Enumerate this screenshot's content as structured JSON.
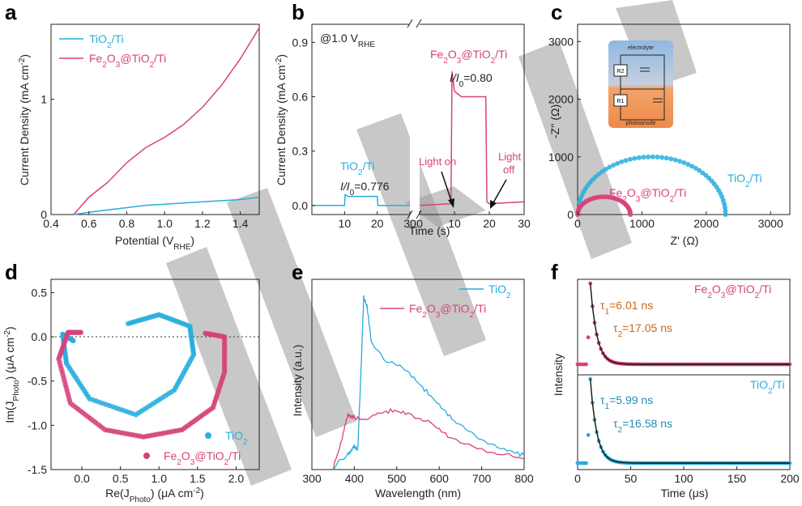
{
  "colors": {
    "tio2": "#27aedd",
    "fe2o3": "#d7427b",
    "fit": "#111111",
    "tau_fe": "#c56a1b",
    "tau_ti": "#1f8fb8"
  },
  "chart_data": [
    {
      "id": "a",
      "panel_label": "a",
      "type": "line",
      "xlabel": "Potential (V",
      "xlabel_sub": "RHE",
      "xlabel_end": ")",
      "ylabel": "Current Density  (mA cm",
      "ylabel_sup": "-2",
      "ylabel_end": ")",
      "xlim": [
        0.4,
        1.5
      ],
      "ylim": [
        0,
        1.65
      ],
      "xticks": [
        0.4,
        0.6,
        0.8,
        1.0,
        1.2,
        1.4
      ],
      "yticks": [
        0,
        1
      ],
      "legend": [
        {
          "key": "tio2",
          "name": "TiO",
          "sub1": "2",
          "rest": "/Ti"
        },
        {
          "key": "fe2o3",
          "name": "Fe",
          "sub1": "2",
          "mid": "O",
          "sub2": "3",
          "rest": "@TiO",
          "sub3": "2",
          "tail": "/Ti"
        }
      ],
      "series": [
        {
          "key": "tio2",
          "x": [
            0.52,
            0.6,
            0.7,
            0.8,
            0.9,
            1.0,
            1.1,
            1.2,
            1.3,
            1.4,
            1.5
          ],
          "y": [
            0.0,
            0.02,
            0.04,
            0.06,
            0.08,
            0.09,
            0.1,
            0.11,
            0.12,
            0.13,
            0.15
          ]
        },
        {
          "key": "fe2o3",
          "x": [
            0.52,
            0.6,
            0.7,
            0.8,
            0.9,
            1.0,
            1.1,
            1.2,
            1.3,
            1.4,
            1.5
          ],
          "y": [
            0.0,
            0.15,
            0.28,
            0.45,
            0.58,
            0.67,
            0.78,
            0.93,
            1.12,
            1.35,
            1.62
          ]
        }
      ]
    },
    {
      "id": "b",
      "panel_label": "b",
      "type": "line",
      "annotation_top": "@1.0 V",
      "annotation_top_sub": "RHE",
      "xlabel": "Time (s)",
      "ylabel": "Current Density  (mA cm",
      "ylabel_sup": "-2",
      "ylabel_end": ")",
      "ylim": [
        -0.05,
        1.0
      ],
      "yticks": [
        0.0,
        0.3,
        0.6,
        0.9
      ],
      "left_xticks": [
        0,
        10,
        20,
        30
      ],
      "right_xticks": [
        0,
        10,
        20,
        30
      ],
      "xlim": [
        0,
        30
      ],
      "label_tio2": "TiO",
      "label_tio2_sub": "2",
      "label_tio2_rest": "/Ti",
      "ratio_tio2": "I/I",
      "ratio_tio2_sub": "0",
      "ratio_tio2_val": "=0.776",
      "label_fe": "Fe",
      "label_fe_sub1": "2",
      "label_fe_mid": "O",
      "label_fe_sub2": "3",
      "label_fe_rest": "@TiO",
      "label_fe_sub3": "2",
      "label_fe_tail": "/Ti",
      "ratio_fe": "I/I",
      "ratio_fe_sub": "0",
      "ratio_fe_val": "=0.80",
      "light_on": "Light on",
      "light_off_1": "Light",
      "light_off_2": "off",
      "series": [
        {
          "key": "tio2",
          "part": "left",
          "t": [
            0,
            10,
            10.2,
            11,
            20,
            20.2,
            30
          ],
          "y": [
            0.0,
            0.0,
            0.06,
            0.05,
            0.05,
            0.0,
            0.0
          ]
        },
        {
          "key": "fe2o3",
          "part": "right",
          "t": [
            0,
            9,
            9.3,
            10,
            12,
            19,
            19.3,
            20,
            30
          ],
          "y": [
            0.0,
            0.01,
            0.74,
            0.63,
            0.6,
            0.6,
            0.02,
            0.01,
            0.02
          ]
        }
      ]
    },
    {
      "id": "c",
      "panel_label": "c",
      "type": "scatter",
      "xlabel": "Z' (Ω)",
      "ylabel": "-Z'' (Ω)",
      "xlim": [
        0,
        3300
      ],
      "ylim": [
        0,
        3300
      ],
      "xticks": [
        0,
        1000,
        2000,
        3000
      ],
      "yticks": [
        0,
        1000,
        2000,
        3000
      ],
      "label_tio2": "TiO",
      "label_tio2_sub": "2",
      "label_tio2_rest": "/Ti",
      "label_fe": "Fe",
      "label_fe_sub1": "2",
      "label_fe_mid": "O",
      "label_fe_sub2": "3",
      "label_fe_rest": "@TiO",
      "label_fe_sub3": "2",
      "label_fe_tail": "/Ti",
      "inset": {
        "top_label": "electrolyte",
        "bottom_label": "photoanode",
        "r2": "R2",
        "r1": "R1"
      },
      "arcs": [
        {
          "key": "tio2",
          "center": 1150,
          "radius": 1150,
          "z_end": 2320,
          "points": 48
        },
        {
          "key": "fe2o3",
          "center": 410,
          "radius": 410,
          "z_end": 820,
          "points": 36
        }
      ]
    },
    {
      "id": "d",
      "panel_label": "d",
      "type": "scatter",
      "xlabel": "Re(J",
      "xlabel_sub": "Photo",
      "xlabel_end": ") (μA cm",
      "xlabel_sup": "-2",
      "xlabel_end2": ")",
      "ylabel": "Im(J",
      "ylabel_sub": "Photo",
      "ylabel_end": ") (μA cm",
      "ylabel_sup": "-2",
      "ylabel_end2": ")",
      "xlim": [
        -0.4,
        2.3
      ],
      "ylim": [
        -1.5,
        0.65
      ],
      "xticks": [
        0.0,
        0.5,
        1.0,
        1.5,
        2.0
      ],
      "yticks": [
        -1.5,
        -1.0,
        -0.5,
        0.0,
        0.5
      ],
      "legend": [
        {
          "key": "tio2",
          "name": "TiO",
          "sub1": "2"
        },
        {
          "key": "fe2o3",
          "name": "Fe",
          "sub1": "2",
          "mid": "O",
          "sub2": "3",
          "rest": "@TiO",
          "sub3": "2",
          "tail": "/Ti"
        }
      ],
      "series": [
        {
          "key": "tio2",
          "x": [
            0.6,
            1.0,
            1.4,
            1.45,
            1.2,
            0.7,
            0.1,
            -0.2,
            -0.25,
            -0.1
          ],
          "y": [
            0.15,
            0.25,
            0.12,
            -0.2,
            -0.6,
            -0.88,
            -0.7,
            -0.3,
            0.03,
            -0.05
          ]
        },
        {
          "key": "fe2o3",
          "x": [
            1.6,
            1.85,
            1.85,
            1.7,
            1.3,
            0.8,
            0.3,
            -0.15,
            -0.3,
            -0.18,
            0.0
          ],
          "y": [
            0.04,
            0.0,
            -0.4,
            -0.8,
            -1.05,
            -1.13,
            -1.05,
            -0.75,
            -0.25,
            0.05,
            0.05
          ]
        }
      ]
    },
    {
      "id": "e",
      "panel_label": "e",
      "type": "line",
      "xlabel": "Wavelength (nm)",
      "ylabel": "Intensity  (a.u.)",
      "xlim": [
        300,
        800
      ],
      "xticks": [
        300,
        400,
        500,
        600,
        700,
        800
      ],
      "legend": [
        {
          "key": "tio2",
          "name": "TiO",
          "sub1": "2"
        },
        {
          "key": "fe2o3",
          "name": "Fe",
          "sub1": "2",
          "mid": "O",
          "sub2": "3",
          "rest": "@TiO",
          "sub3": "2",
          "tail": "/Ti"
        }
      ],
      "series": [
        {
          "key": "tio2",
          "x": [
            350,
            385,
            400,
            408,
            415,
            422,
            430,
            440,
            470,
            520,
            560,
            600,
            640,
            700,
            760,
            800
          ],
          "y": [
            0.0,
            0.08,
            0.12,
            0.1,
            0.5,
            0.95,
            0.9,
            0.7,
            0.6,
            0.55,
            0.45,
            0.35,
            0.25,
            0.15,
            0.1,
            0.07
          ]
        },
        {
          "key": "fe2o3",
          "x": [
            350,
            370,
            385,
            400,
            420,
            450,
            490,
            530,
            580,
            620,
            700,
            800
          ],
          "y": [
            0.0,
            0.15,
            0.3,
            0.28,
            0.27,
            0.3,
            0.32,
            0.3,
            0.25,
            0.18,
            0.1,
            0.05
          ]
        }
      ]
    },
    {
      "id": "f",
      "panel_label": "f",
      "type": "line",
      "xlabel": "Time (μs)",
      "ylabel": "Intensity",
      "xlim": [
        0,
        200
      ],
      "xticks": [
        0,
        50,
        100,
        150,
        200
      ],
      "top": {
        "label": "Fe",
        "label_sub1": "2",
        "label_mid": "O",
        "label_sub2": "3",
        "label_rest": "@TiO",
        "label_sub3": "2",
        "label_tail": "/Ti",
        "tau1": "τ",
        "tau1_sub": "1",
        "tau1_val": "=6.01 ns",
        "tau2": "τ",
        "tau2_sub": "2",
        "tau2_val": "=17.05 ns",
        "key": "fe2o3",
        "t0": 12,
        "decay": 6
      },
      "bottom": {
        "label": "TiO",
        "label_sub1": "2",
        "label_rest": "/Ti",
        "tau1": "τ",
        "tau1_sub": "1",
        "tau1_val": "=5.99 ns",
        "tau2": "τ",
        "tau2_sub": "2",
        "tau2_val": "=16.58 ns",
        "key": "tio2",
        "t0": 12,
        "decay": 6
      }
    }
  ]
}
